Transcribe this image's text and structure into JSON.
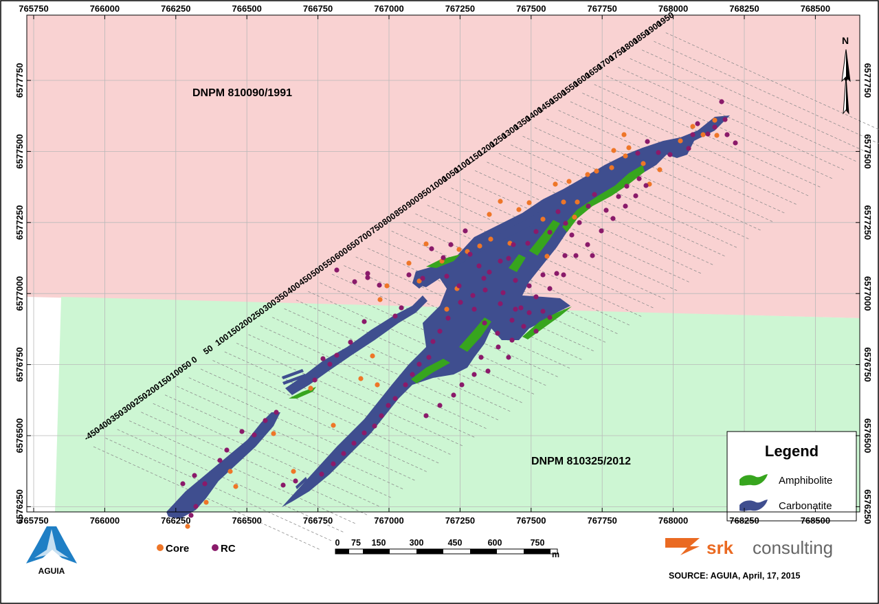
{
  "map": {
    "license_north": "DNPM 810090/1991",
    "license_south": "DNPM 810325/2012",
    "north_arrow": "N",
    "colors": {
      "license_north": "#f9d2d2",
      "license_south": "#cdf6d3",
      "carbonatite": "#3f4e8f",
      "amphibolite": "#37a51e",
      "core": "#ee7628",
      "rc": "#8a1a6a"
    },
    "x_ticks": [
      "765750",
      "766000",
      "766250",
      "766500",
      "766750",
      "767000",
      "767250",
      "767500",
      "767750",
      "768000",
      "768250",
      "768500"
    ],
    "y_ticks": [
      "6577750",
      "6577500",
      "6577250",
      "6577000",
      "6576750",
      "6576500",
      "6576250"
    ],
    "section_lines": [
      "-450",
      "-400",
      "-350",
      "-300",
      "-250",
      "-200",
      "-150",
      "-100",
      "-50",
      "0",
      "50",
      "100",
      "150",
      "200",
      "250",
      "300",
      "350",
      "400",
      "450",
      "500",
      "550",
      "600",
      "650",
      "700",
      "750",
      "800",
      "850",
      "900",
      "950",
      "1000",
      "1050",
      "1100",
      "1150",
      "1200",
      "1250",
      "1300",
      "1350",
      "1400",
      "1450",
      "1500",
      "1550",
      "1600",
      "1650",
      "1700",
      "1750",
      "1800",
      "1850",
      "1900",
      "1950"
    ]
  },
  "legend": {
    "title": "Legend",
    "items": [
      {
        "label": "Amphibolite",
        "icon": "amphibolite-swatch"
      },
      {
        "label": "Carbonatite",
        "icon": "carbonatite-swatch"
      }
    ]
  },
  "drillholes": {
    "core_label": "Core",
    "rc_label": "RC"
  },
  "scale_bar": {
    "labels": [
      "0",
      "75",
      "150",
      "300",
      "450",
      "600",
      "750"
    ],
    "unit": "m"
  },
  "branding": {
    "aguia_logo_text": "AGUIA",
    "srk_bold": "srk",
    "srk_light": "consulting",
    "source": "SOURCE: AGUIA, April, 17, 2015"
  }
}
